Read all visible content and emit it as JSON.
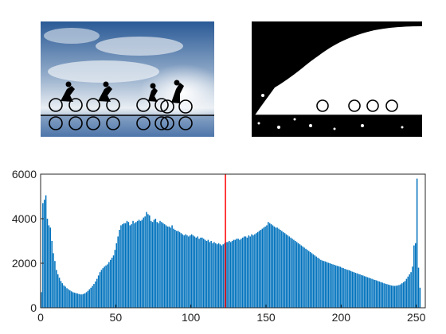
{
  "figure": {
    "background": "#ffffff",
    "panels": [
      {
        "kind": "image",
        "content": "photo-cyclists-sunset",
        "description_colors": [
          "#2d5f9e",
          "#e8eef5",
          "#000000"
        ]
      },
      {
        "kind": "image",
        "content": "binary-threshold-of-photo",
        "description_colors": [
          "#000000",
          "#ffffff"
        ]
      }
    ]
  },
  "chart_data": {
    "type": "bar",
    "title": "",
    "xlabel": "",
    "ylabel": "",
    "xlim": [
      0,
      256
    ],
    "ylim": [
      0,
      6000
    ],
    "xticks": [
      0,
      50,
      100,
      150,
      200,
      250
    ],
    "yticks": [
      0,
      2000,
      4000,
      6000
    ],
    "bar_color": "#0072bd",
    "grid": false,
    "threshold": {
      "x": 123,
      "color": "#ff0000"
    },
    "series": [
      {
        "values": [
          700,
          4700,
          4850,
          5050,
          4000,
          3700,
          3600,
          3000,
          2450,
          2100,
          1700,
          1500,
          1350,
          1200,
          1100,
          1000,
          950,
          880,
          830,
          780,
          740,
          700,
          680,
          660,
          640,
          620,
          600,
          600,
          620,
          650,
          700,
          760,
          830,
          900,
          980,
          1070,
          1180,
          1300,
          1450,
          1600,
          1700,
          1780,
          1850,
          1900,
          1950,
          2050,
          2150,
          2250,
          2350,
          2600,
          2900,
          3200,
          3500,
          3700,
          3750,
          3800,
          3800,
          3900,
          3850,
          3700,
          3750,
          3900,
          3800,
          3850,
          3900,
          3950,
          3900,
          3950,
          4050,
          4100,
          4300,
          4200,
          4150,
          3900,
          3850,
          3950,
          4000,
          3850,
          3800,
          3900,
          3850,
          3800,
          3750,
          3700,
          3650,
          3650,
          3600,
          3700,
          3550,
          3500,
          3450,
          3450,
          3400,
          3350,
          3300,
          3250,
          3300,
          3250,
          3200,
          3250,
          3300,
          3250,
          3200,
          3150,
          3200,
          3100,
          3150,
          3150,
          3100,
          3050,
          3000,
          3050,
          2950,
          3000,
          2900,
          2950,
          2900,
          2850,
          2900,
          2850,
          2800,
          2850,
          2900,
          2950,
          2950,
          3000,
          2950,
          3000,
          3050,
          3050,
          3100,
          3100,
          3050,
          3100,
          3150,
          3200,
          3200,
          3150,
          3250,
          3200,
          3300,
          3250,
          3300,
          3350,
          3400,
          3450,
          3500,
          3550,
          3600,
          3650,
          3700,
          3850,
          3800,
          3750,
          3700,
          3650,
          3600,
          3600,
          3550,
          3500,
          3450,
          3400,
          3350,
          3300,
          3250,
          3200,
          3150,
          3100,
          3050,
          3000,
          2950,
          2900,
          2850,
          2800,
          2750,
          2700,
          2650,
          2600,
          2550,
          2500,
          2450,
          2400,
          2350,
          2300,
          2250,
          2200,
          2150,
          2120,
          2100,
          2080,
          2050,
          2020,
          2000,
          1970,
          1950,
          1930,
          1900,
          1880,
          1860,
          1840,
          1800,
          1780,
          1750,
          1720,
          1700,
          1680,
          1650,
          1620,
          1600,
          1570,
          1550,
          1520,
          1500,
          1470,
          1450,
          1420,
          1400,
          1370,
          1350,
          1320,
          1300,
          1270,
          1250,
          1230,
          1200,
          1180,
          1150,
          1130,
          1100,
          1080,
          1060,
          1040,
          1020,
          1000,
          990,
          980,
          990,
          1000,
          1020,
          1050,
          1100,
          1150,
          1200,
          1300,
          1400,
          1500,
          1600,
          1850,
          2800,
          2900,
          5800,
          1800,
          900
        ]
      }
    ]
  }
}
